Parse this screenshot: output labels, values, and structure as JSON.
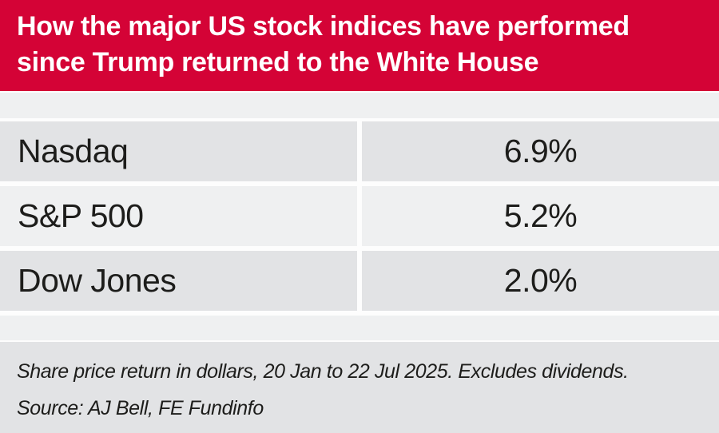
{
  "header": {
    "title_line1": "How the major US stock indices have performed",
    "title_line2": "since Trump returned to the White House"
  },
  "table": {
    "rows": [
      {
        "label": "Nasdaq",
        "value": "6.9%"
      },
      {
        "label": "S&P 500",
        "value": "5.2%"
      },
      {
        "label": "Dow Jones",
        "value": "2.0%"
      }
    ]
  },
  "footer": {
    "note": "Share price return in dollars, 20 Jan to 22 Jul 2025. Excludes dividends.",
    "source": "Source: AJ Bell, FE Fundinfo"
  },
  "colors": {
    "banner_red": "#d40336",
    "row_dark_gray": "#e2e3e5",
    "row_light_gray": "#eff0f1",
    "text_dark": "#1d1d1b",
    "banner_text": "#ffffff"
  },
  "chart_data": {
    "type": "table",
    "title": "How the major US stock indices have performed since Trump returned to the White House",
    "categories": [
      "Nasdaq",
      "S&P 500",
      "Dow Jones"
    ],
    "values": [
      6.9,
      5.2,
      2.0
    ],
    "value_unit": "percent",
    "note": "Share price return in dollars, 20 Jan to 22 Jul 2025. Excludes dividends.",
    "source": "AJ Bell, FE Fundinfo",
    "legend": "none",
    "grid": "off"
  }
}
